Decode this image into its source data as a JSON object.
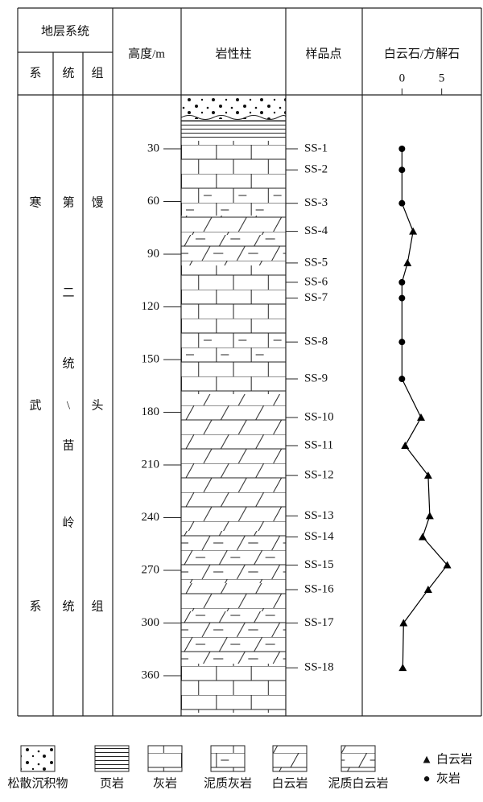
{
  "header": {
    "stratigraphy": "地层系统",
    "system": "系",
    "series": "统",
    "formation": "组",
    "height": "高度/m",
    "lithology": "岩性柱",
    "samples": "样品点",
    "ratio": "白云石/方解石"
  },
  "units": {
    "system": [
      "寒",
      "武",
      "系"
    ],
    "series": [
      "第",
      "二",
      "统",
      "\\",
      "苗",
      "岭",
      "统"
    ],
    "formation": [
      "馒",
      "头",
      "组"
    ]
  },
  "chart_data": {
    "type": "line",
    "categories": [
      "SS-1",
      "SS-2",
      "SS-3",
      "SS-4",
      "SS-5",
      "SS-6",
      "SS-7",
      "SS-8",
      "SS-9",
      "SS-10",
      "SS-11",
      "SS-12",
      "SS-13",
      "SS-14",
      "SS-15",
      "SS-16",
      "SS-17",
      "SS-18"
    ],
    "height": [
      30,
      42,
      61,
      77,
      95,
      106,
      115,
      140,
      161,
      183,
      199,
      216,
      239,
      251,
      267,
      281,
      300,
      351
    ],
    "values": [
      0,
      0,
      0,
      1.4,
      0.7,
      0,
      0,
      0,
      0,
      2.4,
      0.4,
      3.3,
      3.5,
      2.6,
      5.7,
      3.3,
      0.2,
      0.1
    ],
    "point_class": [
      "灰岩",
      "灰岩",
      "灰岩",
      "白云岩",
      "白云岩",
      "灰岩",
      "灰岩",
      "灰岩",
      "灰岩",
      "白云岩",
      "白云岩",
      "白云岩",
      "白云岩",
      "白云岩",
      "白云岩",
      "白云岩",
      "白云岩",
      "白云岩"
    ],
    "yticks": [
      30,
      60,
      90,
      120,
      150,
      180,
      210,
      240,
      270,
      300,
      360
    ],
    "xlim": [
      -5,
      10
    ],
    "xticks": [
      0,
      5
    ],
    "color": "#000000",
    "marker_legend": [
      {
        "symbol": "▲",
        "label": "白云岩"
      },
      {
        "symbol": "●",
        "label": "灰岩"
      }
    ]
  },
  "legend": [
    "松散沉积物",
    "页岩",
    "灰岩",
    "泥质灰岩",
    "白云岩",
    "泥质白云岩"
  ]
}
